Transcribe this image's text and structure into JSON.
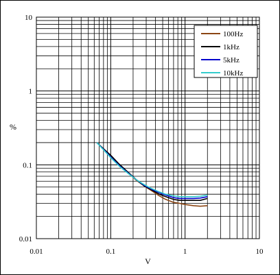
{
  "chart_data": {
    "type": "line",
    "xlabel": "V",
    "ylabel": "%",
    "xscale": "log",
    "yscale": "log",
    "xlim": [
      0.01,
      10
    ],
    "ylim": [
      0.01,
      10
    ],
    "grid": true,
    "legend_position": "top-right",
    "x_ticks": [
      "0.01",
      "0.1",
      "1",
      "10"
    ],
    "y_ticks": [
      "0.01",
      "0.1",
      "1",
      "10"
    ],
    "series": [
      {
        "name": "100Hz",
        "color": "#8B4513",
        "x": [
          0.065,
          0.08,
          0.1,
          0.13,
          0.17,
          0.22,
          0.28,
          0.35,
          0.45,
          0.55,
          0.7,
          0.85,
          1.0,
          1.3,
          1.6,
          2.0
        ],
        "y": [
          0.2,
          0.165,
          0.132,
          0.1,
          0.078,
          0.062,
          0.052,
          0.045,
          0.038,
          0.034,
          0.031,
          0.03,
          0.029,
          0.028,
          0.0275,
          0.028
        ]
      },
      {
        "name": "1kHz",
        "color": "#000000",
        "x": [
          0.065,
          0.08,
          0.1,
          0.13,
          0.17,
          0.22,
          0.28,
          0.35,
          0.45,
          0.55,
          0.7,
          0.85,
          1.0,
          1.3,
          1.6,
          2.0
        ],
        "y": [
          0.2,
          0.165,
          0.135,
          0.102,
          0.08,
          0.063,
          0.052,
          0.046,
          0.04,
          0.037,
          0.034,
          0.033,
          0.033,
          0.033,
          0.033,
          0.035
        ]
      },
      {
        "name": "5kHz",
        "color": "#0000CC",
        "x": [
          0.065,
          0.08,
          0.1,
          0.13,
          0.17,
          0.22,
          0.28,
          0.35,
          0.45,
          0.55,
          0.7,
          0.85,
          1.0,
          1.3,
          1.6,
          2.0
        ],
        "y": [
          0.2,
          0.162,
          0.128,
          0.098,
          0.078,
          0.063,
          0.053,
          0.047,
          0.042,
          0.039,
          0.036,
          0.035,
          0.035,
          0.035,
          0.0355,
          0.037
        ]
      },
      {
        "name": "10kHz",
        "color": "#33CCCC",
        "x": [
          0.065,
          0.08,
          0.1,
          0.13,
          0.17,
          0.22,
          0.28,
          0.35,
          0.45,
          0.55,
          0.7,
          0.85,
          1.0,
          1.3,
          1.6,
          2.0
        ],
        "y": [
          0.2,
          0.16,
          0.125,
          0.096,
          0.077,
          0.063,
          0.054,
          0.048,
          0.043,
          0.04,
          0.038,
          0.037,
          0.037,
          0.037,
          0.0375,
          0.039
        ]
      }
    ]
  }
}
